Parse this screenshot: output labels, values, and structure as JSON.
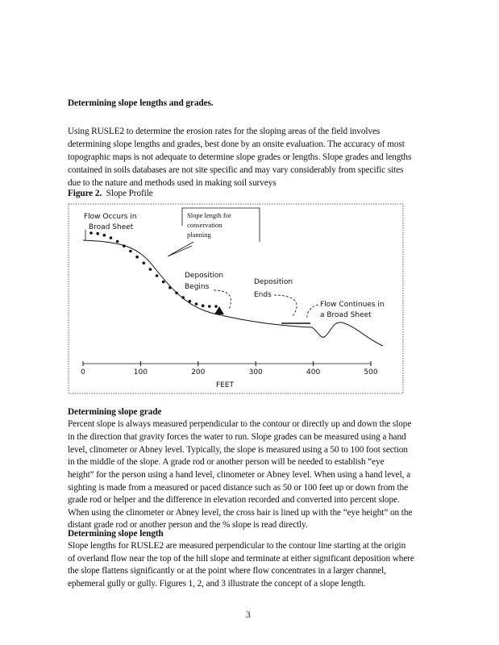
{
  "section1": {
    "heading": "Determining slope lengths and grades.",
    "lines": [
      "Using RUSLE2 to determine the erosion rates for the sloping areas of the field involves",
      "determining slope lengths and grades, best done by an onsite evaluation.  The accuracy of most",
      "topographic maps is not adequate to determine slope grades or lengths.  Slope grades and lengths",
      "contained in soils databases are not site specific and may vary considerably from specific sites",
      "due to the nature and methods used in making soil surveys"
    ]
  },
  "figure": {
    "caption_label": "Figure 2.",
    "caption_title": "Slope Profile",
    "labels": {
      "flow_occurs": [
        "Flow Occurs in",
        "Broad Sheet"
      ],
      "slope_length": [
        "Slope length for",
        "conservation",
        "planning"
      ],
      "deposition_begins": [
        "Deposition",
        "Begins"
      ],
      "deposition_ends": [
        "Deposition",
        "Ends"
      ],
      "flow_continues": [
        "Flow Continues in",
        "a Broad Sheet"
      ]
    },
    "x_ticks": [
      "0",
      "100",
      "200",
      "300",
      "400",
      "500"
    ],
    "x_label": "FEET"
  },
  "section2": {
    "heading": "Determining slope grade",
    "lines": [
      "Percent slope is always measured perpendicular to the contour or directly up and down the slope",
      "in the direction that gravity forces the water to run.  Slope grades can be measured using a hand",
      "level, clinometer or Abney level.  Typically, the slope is measured using a 50 to 100 foot section",
      "in the middle of the slope.  A grade rod or another person will be needed to establish “eye",
      "height” for the person using a hand level, clinometer or Abney level.  When using a hand level, a",
      "sighting is made from a measured or paced distance such as 50 or 100 feet up or down from the",
      "grade rod or helper and the difference in elevation recorded and converted into percent slope.",
      "When using the clinometer or Abney level, the cross hair is lined up with the “eye height” on the",
      "distant grade rod or another person and the % slope is read directly."
    ]
  },
  "section3": {
    "heading": "Determining slope length",
    "lines": [
      "Slope lengths for RUSLE2 are measured perpendicular to the contour line starting at the origin",
      "of overland flow near the top of the hill slope and terminate at either significant deposition where",
      "the slope flattens significantly or at the point where flow concentrates in a larger channel,",
      "ephemeral gully or gully.  Figures 1, 2, and 3 illustrate the concept of a slope length."
    ]
  },
  "page_number": "3"
}
